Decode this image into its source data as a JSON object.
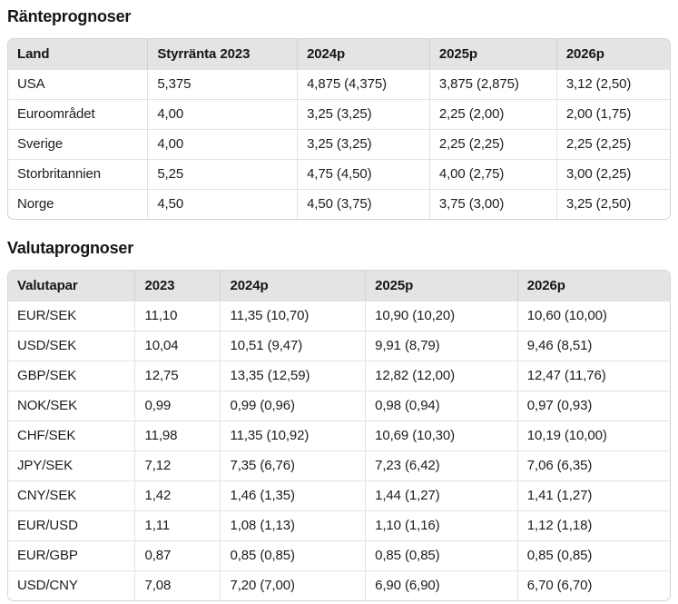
{
  "page": {
    "background_color": "#ffffff",
    "text_color": "#1a1a1a",
    "header_bg_color": "#e4e4e4",
    "border_color": "#d4d4d4",
    "row_divider_color": "#e3e3e3"
  },
  "sections": [
    {
      "title": "Ränteprognoser",
      "table": {
        "headers": [
          "Land",
          "Styrränta 2023",
          "2024p",
          "2025p",
          "2026p"
        ],
        "col_widths": [
          "21.1%",
          "22.6%",
          "20.0%",
          "19.2%",
          "17.1%"
        ],
        "rows": [
          [
            "USA",
            "5,375",
            "4,875 (4,375)",
            "3,875 (2,875)",
            "3,12 (2,50)"
          ],
          [
            "Euroområdet",
            "4,00",
            "3,25 (3,25)",
            "2,25 (2,00)",
            "2,00 (1,75)"
          ],
          [
            "Sverige",
            "4,00",
            "3,25 (3,25)",
            "2,25 (2,25)",
            "2,25 (2,25)"
          ],
          [
            "Storbritannien",
            "5,25",
            "4,75 (4,50)",
            "4,00 (2,75)",
            "3,00 (2,25)"
          ],
          [
            "Norge",
            "4,50",
            "4,50 (3,75)",
            "3,75 (3,00)",
            "3,25 (2,50)"
          ]
        ]
      }
    },
    {
      "title": "Valutaprognoser",
      "table": {
        "headers": [
          "Valutapar",
          "2023",
          "2024p",
          "2025p",
          "2026p"
        ],
        "col_widths": [
          "19.2%",
          "12.9%",
          "21.9%",
          "23.0%",
          "23.0%"
        ],
        "rows": [
          [
            "EUR/SEK",
            "11,10",
            "11,35 (10,70)",
            "10,90 (10,20)",
            "10,60 (10,00)"
          ],
          [
            "USD/SEK",
            "10,04",
            "10,51 (9,47)",
            "9,91 (8,79)",
            "9,46 (8,51)"
          ],
          [
            "GBP/SEK",
            "12,75",
            "13,35 (12,59)",
            "12,82 (12,00)",
            "12,47 (11,76)"
          ],
          [
            "NOK/SEK",
            "0,99",
            "0,99 (0,96)",
            "0,98 (0,94)",
            "0,97 (0,93)"
          ],
          [
            "CHF/SEK",
            "11,98",
            "11,35 (10,92)",
            "10,69 (10,30)",
            "10,19 (10,00)"
          ],
          [
            "JPY/SEK",
            "7,12",
            "7,35 (6,76)",
            "7,23 (6,42)",
            "7,06 (6,35)"
          ],
          [
            "CNY/SEK",
            "1,42",
            "1,46 (1,35)",
            "1,44 (1,27)",
            "1,41 (1,27)"
          ],
          [
            "EUR/USD",
            "1,11",
            "1,08 (1,13)",
            "1,10 (1,16)",
            "1,12 (1,18)"
          ],
          [
            "EUR/GBP",
            "0,87",
            "0,85 (0,85)",
            "0,85 (0,85)",
            "0,85 (0,85)"
          ],
          [
            "USD/CNY",
            "7,08",
            "7,20 (7,00)",
            "6,90 (6,90)",
            "6,70 (6,70)"
          ]
        ]
      }
    }
  ]
}
